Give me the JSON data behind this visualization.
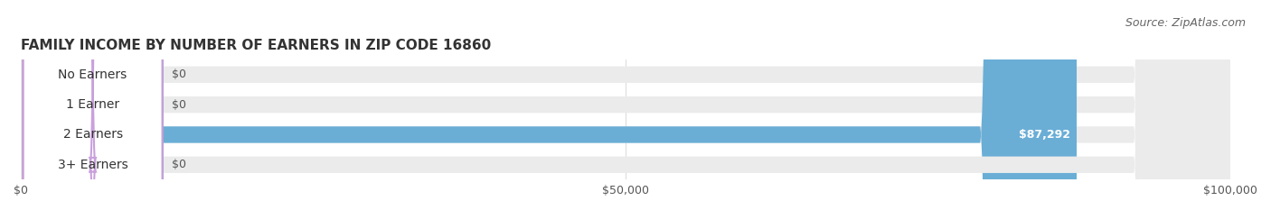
{
  "title": "FAMILY INCOME BY NUMBER OF EARNERS IN ZIP CODE 16860",
  "source": "Source: ZipAtlas.com",
  "categories": [
    "No Earners",
    "1 Earner",
    "2 Earners",
    "3+ Earners"
  ],
  "values": [
    0,
    0,
    87292,
    0
  ],
  "bar_colors": [
    "#f5b888",
    "#f08080",
    "#6aaed6",
    "#c9a0dc"
  ],
  "label_colors": [
    "#f5b888",
    "#f08080",
    "#6aaed6",
    "#c9a0dc"
  ],
  "bg_bar_color": "#f0f0f0",
  "xlim": [
    0,
    100000
  ],
  "xticks": [
    0,
    50000,
    100000
  ],
  "xtick_labels": [
    "$0",
    "$50,000",
    "$100,000"
  ],
  "value_labels": [
    "$0",
    "$0",
    "$87,292",
    "$0"
  ],
  "bar_height": 0.55,
  "title_fontsize": 11,
  "source_fontsize": 9,
  "label_fontsize": 10,
  "value_fontsize": 9,
  "background_color": "#ffffff",
  "bar_bg_color": "#ebebeb"
}
